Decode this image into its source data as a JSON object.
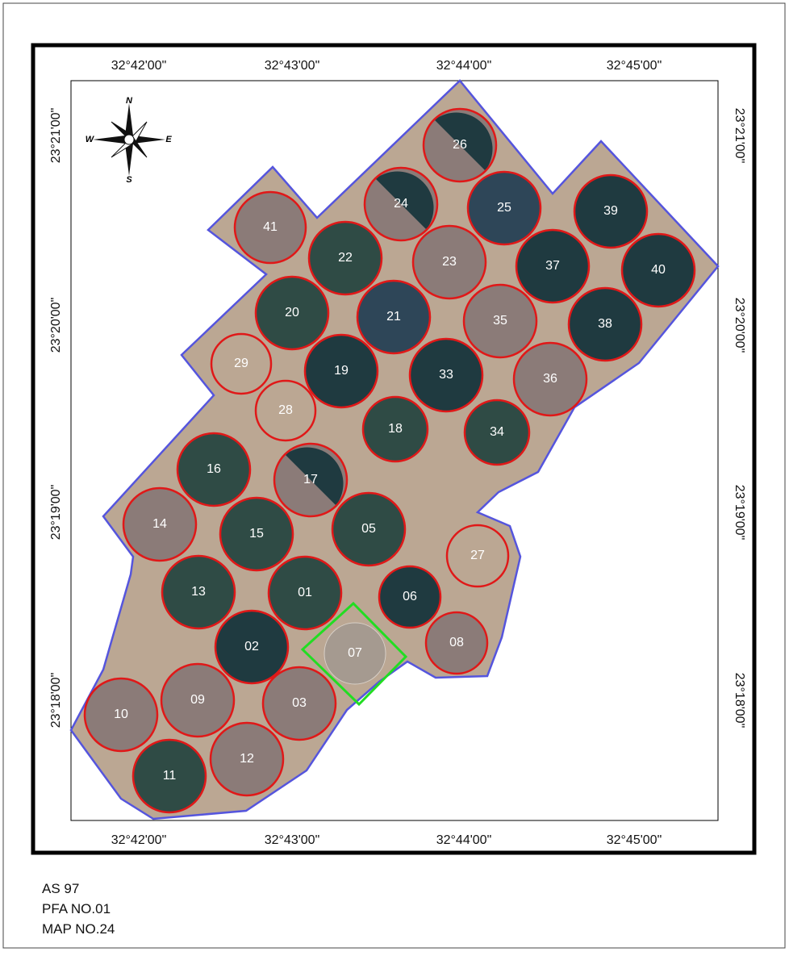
{
  "grid_labels": {
    "top": [
      "32°42'00\"",
      "32°43'00\"",
      "32°44'00\"",
      "32°45'00\""
    ],
    "bottom": [
      "32°42'00\"",
      "32°43'00\"",
      "32°44'00\"",
      "32°45'00\""
    ],
    "left": [
      "23°21'00\"",
      "23°20'00\"",
      "23°19'00\"",
      "23°18'00\""
    ],
    "right": [
      "23°21'00\"",
      "23°20'00\"",
      "23°19'00\"",
      "23°18'00\""
    ]
  },
  "compass": {
    "n": "N",
    "s": "S",
    "e": "E",
    "w": "W"
  },
  "fields": [
    "26",
    "24",
    "25",
    "39",
    "41",
    "22",
    "23",
    "37",
    "40",
    "20",
    "21",
    "35",
    "38",
    "29",
    "19",
    "33",
    "36",
    "28",
    "18",
    "34",
    "16",
    "17",
    "14",
    "15",
    "05",
    "27",
    "13",
    "01",
    "06",
    "02",
    "07",
    "08",
    "10",
    "09",
    "03",
    "12",
    "11"
  ],
  "footer": [
    "AS 97",
    "PFA NO.01",
    "MAP NO.24"
  ]
}
